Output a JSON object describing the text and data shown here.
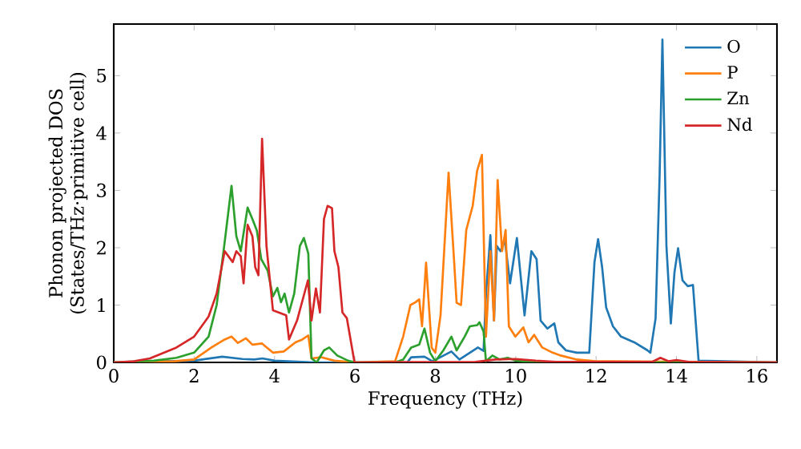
{
  "chart_data": {
    "type": "line",
    "xlabel": "Frequency (THz)",
    "ylabel": "Phonon projected DOS\n(States/THz·primitive cell)",
    "xlim": [
      0,
      16.5
    ],
    "ylim": [
      0,
      5.9
    ],
    "xticks": [
      0,
      2,
      4,
      6,
      8,
      10,
      12,
      14,
      16
    ],
    "yticks": [
      0,
      1,
      2,
      3,
      4,
      5
    ],
    "legend": "top right",
    "marker": "none",
    "line_style": "solid",
    "grid": false,
    "series": [
      {
        "name": "O",
        "color": "#1f77b4",
        "x": [
          0,
          2,
          2.7,
          3.2,
          3.5,
          3.7,
          4.0,
          5.0,
          7.3,
          7.4,
          7.73,
          7.93,
          8.4,
          8.6,
          9.06,
          9.2,
          9.26,
          9.37,
          9.46,
          9.53,
          9.62,
          9.73,
          9.86,
          10.03,
          10.22,
          10.39,
          10.52,
          10.62,
          10.79,
          10.96,
          11.06,
          11.25,
          11.52,
          11.83,
          11.96,
          12.05,
          12.15,
          12.25,
          12.42,
          12.62,
          12.95,
          13.28,
          13.35,
          13.48,
          13.58,
          13.65,
          13.75,
          13.86,
          13.95,
          14.04,
          14.15,
          14.28,
          14.41,
          14.55,
          16.5
        ],
        "values": [
          0,
          0.03,
          0.1,
          0.06,
          0.05,
          0.07,
          0.03,
          0,
          0,
          0.09,
          0.1,
          0.02,
          0.19,
          0.05,
          0.26,
          0.2,
          1.19,
          2.22,
          0.73,
          2.03,
          1.94,
          2.13,
          1.38,
          2.17,
          0.82,
          1.94,
          1.8,
          0.73,
          0.59,
          0.68,
          0.35,
          0.21,
          0.17,
          0.17,
          1.75,
          2.15,
          1.66,
          0.96,
          0.63,
          0.45,
          0.35,
          0.21,
          0.17,
          0.77,
          3.25,
          5.63,
          2.03,
          0.68,
          1.57,
          1.99,
          1.43,
          1.33,
          1.35,
          0.03,
          0
        ]
      },
      {
        "name": "P",
        "color": "#ff7f0e",
        "x": [
          0,
          1.5,
          2,
          2.43,
          2.76,
          2.93,
          3.09,
          3.29,
          3.45,
          3.69,
          3.96,
          4.23,
          4.52,
          4.69,
          4.84,
          4.92,
          5.16,
          5.49,
          6,
          7.0,
          7.2,
          7.38,
          7.51,
          7.6,
          7.67,
          7.77,
          7.91,
          8.0,
          8.13,
          8.33,
          8.46,
          8.53,
          8.64,
          8.77,
          8.93,
          9.04,
          9.16,
          9.26,
          9.37,
          9.46,
          9.55,
          9.66,
          9.75,
          9.83,
          9.99,
          10.19,
          10.32,
          10.46,
          10.66,
          10.92,
          11.12,
          11.52,
          12,
          16.5
        ],
        "values": [
          0,
          0.02,
          0.05,
          0.26,
          0.4,
          0.45,
          0.34,
          0.42,
          0.31,
          0.33,
          0.17,
          0.19,
          0.35,
          0.4,
          0.47,
          0.07,
          0.09,
          0.03,
          0,
          0.02,
          0.45,
          1.0,
          1.05,
          1.1,
          0.63,
          1.74,
          0.26,
          0.17,
          0.82,
          3.31,
          1.85,
          1.04,
          1.0,
          2.31,
          2.73,
          3.34,
          3.62,
          0.45,
          1.94,
          0.73,
          3.18,
          1.94,
          2.31,
          0.63,
          0.45,
          0.61,
          0.35,
          0.48,
          0.26,
          0.17,
          0.12,
          0.05,
          0.02,
          0
        ]
      },
      {
        "name": "Zn",
        "color": "#2ca02c",
        "x": [
          0,
          1.0,
          1.56,
          2,
          2.36,
          2.56,
          2.76,
          2.93,
          3.05,
          3.16,
          3.33,
          3.45,
          3.56,
          3.67,
          3.83,
          3.96,
          4.07,
          4.16,
          4.25,
          4.36,
          4.49,
          4.63,
          4.73,
          4.84,
          4.92,
          5.05,
          5.23,
          5.36,
          5.56,
          5.83,
          6,
          7.0,
          7.2,
          7.4,
          7.6,
          7.73,
          7.87,
          8.0,
          8.2,
          8.4,
          8.53,
          8.73,
          8.86,
          9.04,
          9.1,
          9.2,
          9.26,
          9.42,
          9.6,
          9.8,
          10.0,
          10.5,
          16.5
        ],
        "values": [
          0,
          0.03,
          0.08,
          0.17,
          0.45,
          1.0,
          2.1,
          3.08,
          2.2,
          1.94,
          2.7,
          2.5,
          2.3,
          1.8,
          1.6,
          1.15,
          1.3,
          1.05,
          1.2,
          0.87,
          1.2,
          2.03,
          2.17,
          1.9,
          0.07,
          0,
          0.21,
          0.26,
          0.12,
          0.03,
          0,
          0,
          0.05,
          0.26,
          0.31,
          0.59,
          0.17,
          0.02,
          0.21,
          0.45,
          0.21,
          0.45,
          0.63,
          0.65,
          0.7,
          0.54,
          0.02,
          0.12,
          0.05,
          0.08,
          0.03,
          0,
          0
        ]
      },
      {
        "name": "Nd",
        "color": "#d62728",
        "x": [
          0,
          0.5,
          0.9,
          1.56,
          2,
          2.36,
          2.56,
          2.76,
          2.96,
          3.05,
          3.16,
          3.23,
          3.33,
          3.45,
          3.52,
          3.6,
          3.69,
          3.8,
          3.96,
          4.29,
          4.36,
          4.56,
          4.83,
          4.92,
          5.03,
          5.13,
          5.23,
          5.32,
          5.43,
          5.49,
          5.59,
          5.69,
          5.8,
          5.99,
          9.0,
          9.5,
          10.0,
          10.5,
          11.0,
          13.4,
          13.6,
          13.8,
          14.0,
          14.3,
          16.5
        ],
        "values": [
          0,
          0.02,
          0.07,
          0.26,
          0.45,
          0.8,
          1.2,
          1.94,
          1.75,
          1.94,
          1.85,
          1.38,
          2.4,
          2.2,
          1.66,
          1.52,
          3.9,
          2.03,
          0.91,
          0.82,
          0.4,
          0.73,
          1.43,
          0.73,
          1.29,
          0.87,
          2.5,
          2.73,
          2.69,
          1.94,
          1.66,
          0.87,
          0.77,
          0,
          0.01,
          0.05,
          0.06,
          0.03,
          0.01,
          0.01,
          0.08,
          0.02,
          0.04,
          0.01,
          0
        ]
      }
    ]
  }
}
